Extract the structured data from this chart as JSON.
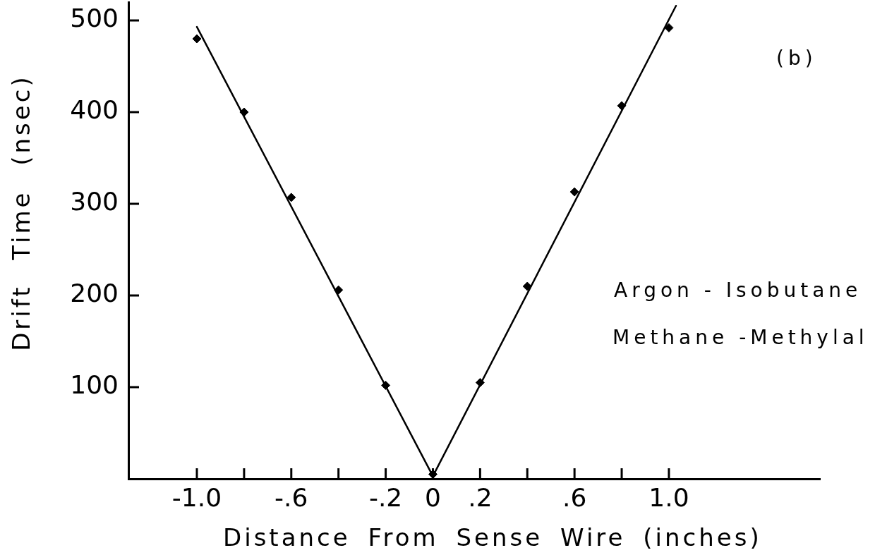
{
  "chart_data": {
    "type": "scatter",
    "xlabel": "Distance From Sense Wire (inches)",
    "ylabel": "Drift Time (nsec)",
    "annotations": [
      "(b)",
      "Argon - Isobutane",
      "Methane -Methylal"
    ],
    "xlim": [
      -1.29,
      1.64
    ],
    "ylim": [
      0,
      520
    ],
    "xticks": [
      {
        "value": -1,
        "label": "-1.0"
      },
      {
        "value": -0.8,
        "label": null
      },
      {
        "value": -0.6,
        "label": "-.6"
      },
      {
        "value": -0.4,
        "label": null
      },
      {
        "value": -0.2,
        "label": "-.2"
      },
      0,
      {
        "value": 0.2,
        "label": ".2"
      },
      {
        "value": 0.4,
        "label": null
      },
      {
        "value": 0.6,
        "label": ".6"
      },
      {
        "value": 0.8,
        "label": null
      },
      {
        "value": 1,
        "label": "1.0"
      }
    ],
    "yticks": [
      100,
      200,
      300,
      400,
      500
    ],
    "grid": false,
    "legend": false,
    "series": [
      {
        "type": "scatter",
        "color": "#000000",
        "marker": "diamond",
        "x": [
          -1,
          -0.8,
          -0.6,
          -0.4,
          -0.2,
          0,
          0.2,
          0.4,
          0.6,
          0.8,
          1
        ],
        "values": [
          480,
          400,
          307,
          206,
          102,
          5,
          105,
          210,
          313,
          407,
          492
        ]
      },
      {
        "type": "line",
        "color": "#000000",
        "marker": "none",
        "x": [
          -1,
          0
        ],
        "values": [
          493,
          3
        ]
      },
      {
        "type": "line",
        "color": "#000000",
        "marker": "none",
        "x": [
          0,
          1.03
        ],
        "values": [
          3,
          516
        ]
      }
    ]
  }
}
